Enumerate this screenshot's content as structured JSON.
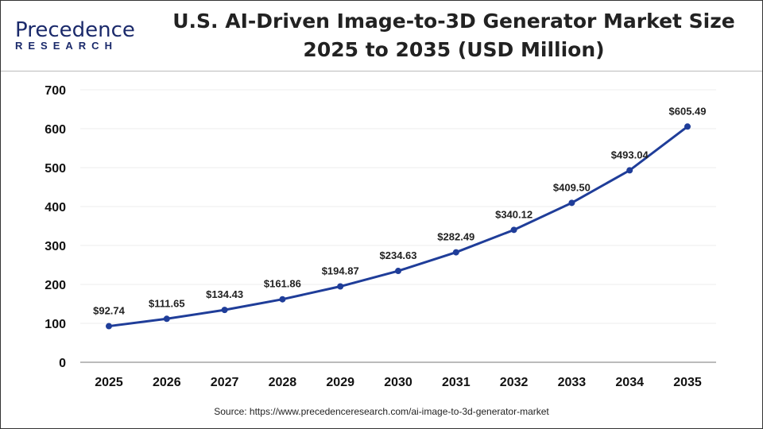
{
  "logo": {
    "line1": "Precedence",
    "line2": "RESEARCH"
  },
  "title_line1": "U.S. AI-Driven Image-to-3D Generator Market Size",
  "title_line2": "2025 to 2035 (USD Million)",
  "source": "Source: https://www.precedenceresearch.com/ai-image-to-3d-generator-market",
  "chart_data": {
    "type": "line",
    "title": "U.S. AI-Driven Image-to-3D Generator Market Size 2025 to 2035 (USD Million)",
    "categories": [
      "2025",
      "2026",
      "2027",
      "2028",
      "2029",
      "2030",
      "2031",
      "2032",
      "2033",
      "2034",
      "2035"
    ],
    "values": [
      92.74,
      111.65,
      134.43,
      161.86,
      194.87,
      234.63,
      282.49,
      340.12,
      409.5,
      493.04,
      605.49
    ],
    "labels": [
      "$92.74",
      "$111.65",
      "$134.43",
      "$161.86",
      "$194.87",
      "$234.63",
      "$282.49",
      "$340.12",
      "$409.50",
      "$493.04",
      "$605.49"
    ],
    "ylim": [
      0,
      700
    ],
    "yticks": [
      "0",
      "100",
      "200",
      "300",
      "400",
      "500",
      "600",
      "700"
    ],
    "grid": true,
    "line_color": "#1f3d99"
  }
}
